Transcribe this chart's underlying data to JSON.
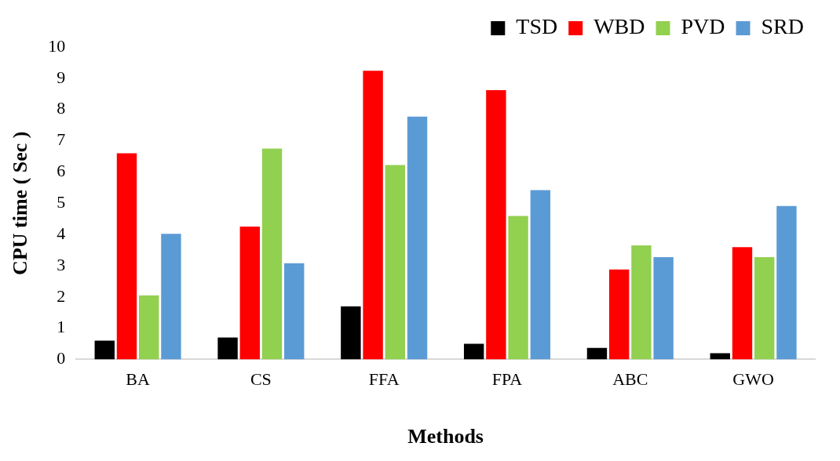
{
  "chart_data": {
    "type": "bar",
    "xlabel": "Methods",
    "ylabel": "CPU time ( Sec )",
    "categories": [
      "BA",
      "CS",
      "FFA",
      "FPA",
      "ABC",
      "GWO"
    ],
    "series": [
      {
        "name": "TSD",
        "color": "#000000",
        "values": [
          0.6,
          0.7,
          1.7,
          0.5,
          0.37,
          0.2
        ]
      },
      {
        "name": "WBD",
        "color": "#ff0000",
        "values": [
          6.6,
          4.25,
          9.24,
          8.62,
          2.88,
          3.59
        ]
      },
      {
        "name": "PVD",
        "color": "#92d050",
        "values": [
          2.05,
          6.75,
          6.22,
          4.59,
          3.65,
          3.27
        ]
      },
      {
        "name": "SRD",
        "color": "#5b9bd5",
        "values": [
          4.02,
          3.08,
          7.77,
          5.42,
          3.27,
          4.91
        ]
      }
    ],
    "ylim": [
      0,
      10
    ],
    "yticks": [
      0,
      1,
      2,
      3,
      4,
      5,
      6,
      7,
      8,
      9,
      10
    ],
    "grid": false,
    "legend": "top right"
  }
}
